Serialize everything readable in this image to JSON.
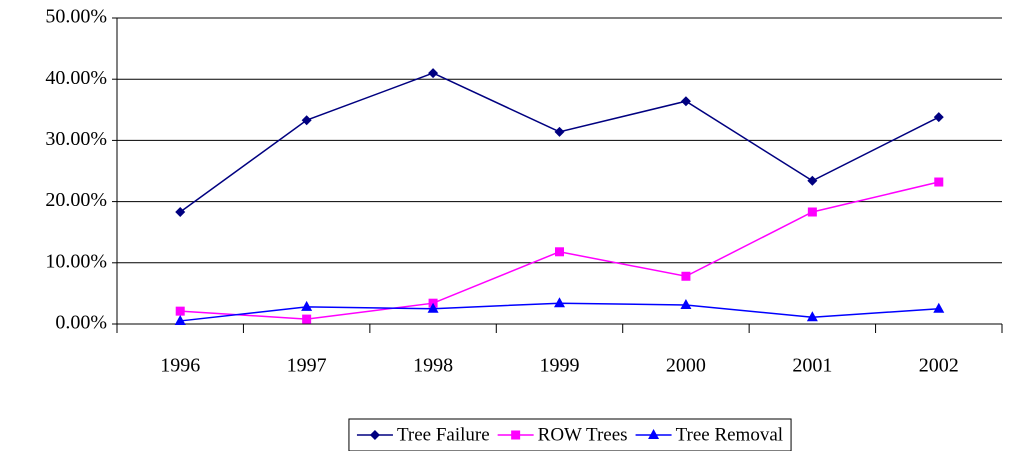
{
  "chart_data": {
    "type": "line",
    "categories": [
      "1996",
      "1997",
      "1998",
      "1999",
      "2000",
      "2001",
      "2002"
    ],
    "series": [
      {
        "name": "Tree Failure",
        "color": "#000080",
        "marker": "diamond",
        "values": [
          18.3,
          33.3,
          41.0,
          31.4,
          36.4,
          23.4,
          33.8
        ]
      },
      {
        "name": "ROW Trees",
        "color": "#ff00ff",
        "marker": "square",
        "values": [
          2.1,
          0.8,
          3.4,
          11.8,
          7.8,
          18.3,
          23.2
        ]
      },
      {
        "name": "Tree Removal",
        "color": "#0000ff",
        "marker": "triangle",
        "values": [
          0.5,
          2.8,
          2.5,
          3.4,
          3.1,
          1.1,
          2.5
        ]
      }
    ],
    "ylim": [
      0,
      50
    ],
    "yticks": [
      {
        "value": 0,
        "label": "0.00%"
      },
      {
        "value": 10,
        "label": "10.00%"
      },
      {
        "value": 20,
        "label": "20.00%"
      },
      {
        "value": 30,
        "label": "30.00%"
      },
      {
        "value": 40,
        "label": "40.00%"
      },
      {
        "value": 50,
        "label": "50.00%"
      }
    ],
    "grid": true,
    "legend": "bottom"
  }
}
